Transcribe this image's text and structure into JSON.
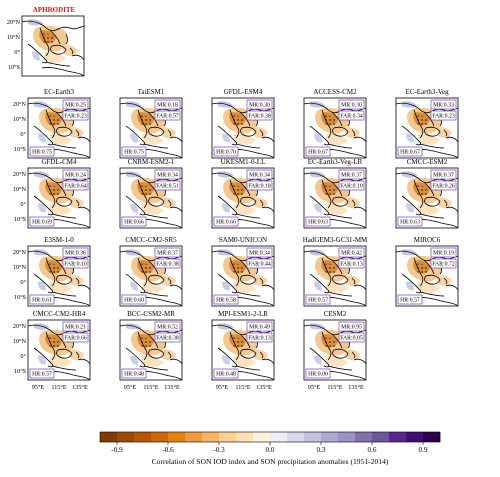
{
  "chart_data": {
    "type": "map-grid",
    "reference": {
      "title": "APHRODITE"
    },
    "lat_ticks": [
      "20°N",
      "10°N",
      "0°",
      "10°S"
    ],
    "lon_ticks": [
      "95°E",
      "115°E",
      "135°E"
    ],
    "colorbar": {
      "ticks": [
        "-0.9",
        "-0.6",
        "-0.3",
        "0.0",
        "0.3",
        "0.6",
        "0.9"
      ],
      "range": [
        -1.0,
        1.0
      ],
      "label": "Correlation of SON IOD index and SON precipitation anomalies  (1951-2014)"
    },
    "panels": [
      {
        "title": "EC-Earth3",
        "MR": "MR:0.25",
        "FAR": "FAR:0.23",
        "HR": "HR:0.75"
      },
      {
        "title": "TaiESM1",
        "MR": "MR:0.18",
        "FAR": "FAR:0.57",
        "HR": "HR:0.75"
      },
      {
        "title": "GFDL-ESM4",
        "MR": "MR:0.30",
        "FAR": "FAR:0.38",
        "HR": "HR:0.70"
      },
      {
        "title": "ACCESS-CM2",
        "MR": "MR:0.30",
        "FAR": "FAR:0.34",
        "HR": "HR:0.67"
      },
      {
        "title": "EC-Earth3-Veg",
        "MR": "MR:0.33",
        "FAR": "FAR:0.23",
        "HR": "HR:0.67"
      },
      {
        "title": "GFDL-CM4",
        "MR": "MR:0.24",
        "FAR": "FAR:0.64",
        "HR": "HR:0.69"
      },
      {
        "title": "CNRM-ESM2-1",
        "MR": "MR:0.34",
        "FAR": "FAR:0.51",
        "HR": "HR:0.66"
      },
      {
        "title": "UKESM1-0-LL",
        "MR": "MR:0.34",
        "FAR": "FAR:0.18",
        "HR": "HR:0.66"
      },
      {
        "title": "EC-Earth3-Veg-LR",
        "MR": "MR:0.37",
        "FAR": "FAR:0.10",
        "HR": "HR:0.63"
      },
      {
        "title": "CMCC-ESM2",
        "MR": "MR:0.37",
        "FAR": "FAR:0.26",
        "HR": "HR:0.63"
      },
      {
        "title": "E3SM-1-0",
        "MR": "MR:0.36",
        "FAR": "FAR:0.10",
        "HR": "HR:0.61"
      },
      {
        "title": "CMCC-CM2-SR5",
        "MR": "MR:0.37",
        "FAR": "FAR:0.38",
        "HR": "HR:0.60"
      },
      {
        "title": "SAM0-UNICON",
        "MR": "MR:0.34",
        "FAR": "FAR:0.44",
        "HR": "HR:0.58"
      },
      {
        "title": "HadGEM3-GC31-MM",
        "MR": "MR:0.42",
        "FAR": "FAR:0.13",
        "HR": "HR:0.57"
      },
      {
        "title": "MIROC6",
        "MR": "MR:0.19",
        "FAR": "FAR:0.72",
        "HR": "HR:0.57"
      },
      {
        "title": "CMCC-CM2-HR4",
        "MR": "MR:0.21",
        "FAR": "FAR:0.66",
        "HR": "HR:0.57"
      },
      {
        "title": "BCC-CSM2-MR",
        "MR": "MR:0.52",
        "FAR": "FAR:0.38",
        "HR": "HR:0.48"
      },
      {
        "title": "MPI-ESM1-2-LR",
        "MR": "MR:0.49",
        "FAR": "FAR:0.13",
        "HR": "HR:0.48"
      },
      {
        "title": "CESM2",
        "MR": "MR:0.95",
        "FAR": "FAR:0.05",
        "HR": "HR:0.00"
      }
    ]
  }
}
